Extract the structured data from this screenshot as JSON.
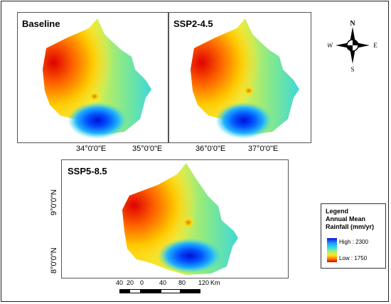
{
  "panels": {
    "baseline": {
      "title": "Baseline"
    },
    "ssp245": {
      "title": "SSP2-4.5"
    },
    "ssp585": {
      "title": "SSP5-8.5"
    }
  },
  "ticks": {
    "top_left_x": [
      "34°0'0\"E",
      "35°0'0\"E"
    ],
    "top_right_x": [
      "36°0'0\"E",
      "37°0'0\"E"
    ],
    "bottom_y": [
      "9°0'0\"N",
      "8°0'0\"N"
    ]
  },
  "compass": {
    "n": "N",
    "s": "S",
    "e": "E",
    "w": "W"
  },
  "legend": {
    "title": "Legend",
    "subtitle1": "Annual Mean",
    "subtitle2": "Rainfall (mm/yr)",
    "high": "High : 2300",
    "low": "Low : 1750"
  },
  "scalebar": {
    "labels": [
      "40",
      "20",
      "0",
      "40",
      "80",
      "120"
    ],
    "unit": "Km"
  }
}
